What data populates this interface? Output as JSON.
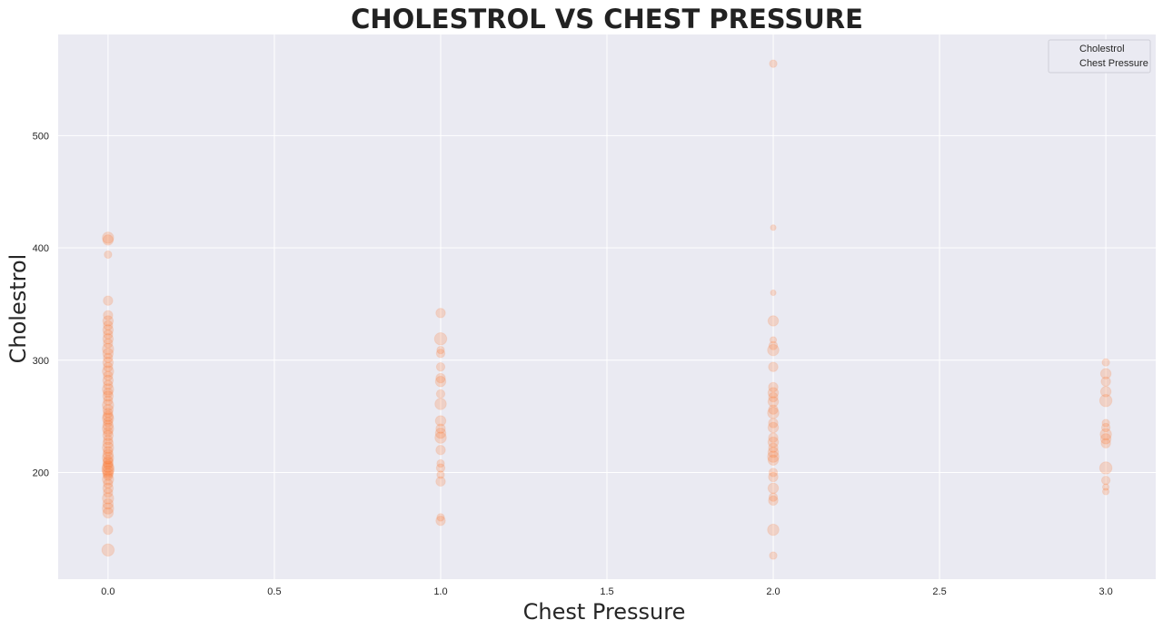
{
  "colors": {
    "background": "#eaeaf2",
    "grid": "#ffffff",
    "marker": "#ff6a1a"
  },
  "chart_data": {
    "type": "scatter",
    "title": "CHOLESTROL VS CHEST PRESSURE",
    "xlabel": "Chest Pressure",
    "ylabel": "Cholestrol",
    "xlim": [
      -0.15,
      3.15
    ],
    "ylim": [
      105,
      590
    ],
    "x_ticks": [
      "0.0",
      "0.5",
      "1.0",
      "1.5",
      "2.0",
      "2.5",
      "3.0"
    ],
    "y_ticks": [
      "200",
      "300",
      "400",
      "500"
    ],
    "grid": true,
    "legend": {
      "position": "top-right",
      "entries": [
        "Cholestrol",
        "Chest Pressure"
      ]
    },
    "marker_alpha": 0.2,
    "points": [
      {
        "x": 0,
        "y": 131,
        "s": 1.3
      },
      {
        "x": 0,
        "y": 149,
        "s": 1.0
      },
      {
        "x": 0,
        "y": 164,
        "s": 1.1
      },
      {
        "x": 0,
        "y": 168,
        "s": 1.2
      },
      {
        "x": 0,
        "y": 172,
        "s": 1.1
      },
      {
        "x": 0,
        "y": 177,
        "s": 1.2
      },
      {
        "x": 0,
        "y": 182,
        "s": 1.0
      },
      {
        "x": 0,
        "y": 186,
        "s": 1.1
      },
      {
        "x": 0,
        "y": 190,
        "s": 1.0
      },
      {
        "x": 0,
        "y": 194,
        "s": 1.2
      },
      {
        "x": 0,
        "y": 197,
        "s": 1.0
      },
      {
        "x": 0,
        "y": 199,
        "s": 1.1
      },
      {
        "x": 0,
        "y": 201,
        "s": 1.2
      },
      {
        "x": 0,
        "y": 203,
        "s": 1.3
      },
      {
        "x": 0,
        "y": 205,
        "s": 1.2
      },
      {
        "x": 0,
        "y": 207,
        "s": 1.0
      },
      {
        "x": 0,
        "y": 209,
        "s": 1.1
      },
      {
        "x": 0,
        "y": 211,
        "s": 1.0
      },
      {
        "x": 0,
        "y": 213,
        "s": 1.2
      },
      {
        "x": 0,
        "y": 216,
        "s": 1.1
      },
      {
        "x": 0,
        "y": 219,
        "s": 1.0
      },
      {
        "x": 0,
        "y": 222,
        "s": 1.2
      },
      {
        "x": 0,
        "y": 226,
        "s": 1.1
      },
      {
        "x": 0,
        "y": 229,
        "s": 1.0
      },
      {
        "x": 0,
        "y": 233,
        "s": 1.1
      },
      {
        "x": 0,
        "y": 236,
        "s": 1.0
      },
      {
        "x": 0,
        "y": 239,
        "s": 1.2
      },
      {
        "x": 0,
        "y": 242,
        "s": 1.1
      },
      {
        "x": 0,
        "y": 245,
        "s": 1.0
      },
      {
        "x": 0,
        "y": 248,
        "s": 1.2
      },
      {
        "x": 0,
        "y": 250,
        "s": 1.1
      },
      {
        "x": 0,
        "y": 253,
        "s": 1.0
      },
      {
        "x": 0,
        "y": 256,
        "s": 1.1
      },
      {
        "x": 0,
        "y": 260,
        "s": 1.2
      },
      {
        "x": 0,
        "y": 264,
        "s": 1.0
      },
      {
        "x": 0,
        "y": 268,
        "s": 1.1
      },
      {
        "x": 0,
        "y": 271,
        "s": 1.0
      },
      {
        "x": 0,
        "y": 274,
        "s": 1.2
      },
      {
        "x": 0,
        "y": 278,
        "s": 1.0
      },
      {
        "x": 0,
        "y": 282,
        "s": 1.1
      },
      {
        "x": 0,
        "y": 286,
        "s": 1.0
      },
      {
        "x": 0,
        "y": 290,
        "s": 1.2
      },
      {
        "x": 0,
        "y": 294,
        "s": 1.0
      },
      {
        "x": 0,
        "y": 298,
        "s": 1.1
      },
      {
        "x": 0,
        "y": 302,
        "s": 1.0
      },
      {
        "x": 0,
        "y": 306,
        "s": 1.1
      },
      {
        "x": 0,
        "y": 310,
        "s": 1.2
      },
      {
        "x": 0,
        "y": 315,
        "s": 1.0
      },
      {
        "x": 0,
        "y": 319,
        "s": 1.1
      },
      {
        "x": 0,
        "y": 323,
        "s": 1.0
      },
      {
        "x": 0,
        "y": 327,
        "s": 1.1
      },
      {
        "x": 0,
        "y": 331,
        "s": 1.0
      },
      {
        "x": 0,
        "y": 335,
        "s": 1.1
      },
      {
        "x": 0,
        "y": 340,
        "s": 1.0
      },
      {
        "x": 0,
        "y": 353,
        "s": 1.0
      },
      {
        "x": 0,
        "y": 394,
        "s": 0.8
      },
      {
        "x": 0,
        "y": 407,
        "s": 1.1
      },
      {
        "x": 0,
        "y": 409,
        "s": 1.2
      },
      {
        "x": 1,
        "y": 157,
        "s": 1.0
      },
      {
        "x": 1,
        "y": 160,
        "s": 0.8
      },
      {
        "x": 1,
        "y": 192,
        "s": 1.0
      },
      {
        "x": 1,
        "y": 198,
        "s": 0.8
      },
      {
        "x": 1,
        "y": 204,
        "s": 0.9
      },
      {
        "x": 1,
        "y": 208,
        "s": 0.8
      },
      {
        "x": 1,
        "y": 220,
        "s": 1.0
      },
      {
        "x": 1,
        "y": 231,
        "s": 1.2
      },
      {
        "x": 1,
        "y": 235,
        "s": 1.1
      },
      {
        "x": 1,
        "y": 239,
        "s": 1.0
      },
      {
        "x": 1,
        "y": 246,
        "s": 1.1
      },
      {
        "x": 1,
        "y": 261,
        "s": 1.2
      },
      {
        "x": 1,
        "y": 270,
        "s": 0.9
      },
      {
        "x": 1,
        "y": 281,
        "s": 1.1
      },
      {
        "x": 1,
        "y": 284,
        "s": 1.0
      },
      {
        "x": 1,
        "y": 294,
        "s": 0.9
      },
      {
        "x": 1,
        "y": 306,
        "s": 0.9
      },
      {
        "x": 1,
        "y": 309,
        "s": 0.8
      },
      {
        "x": 1,
        "y": 319,
        "s": 1.3
      },
      {
        "x": 1,
        "y": 342,
        "s": 1.0
      },
      {
        "x": 2,
        "y": 126,
        "s": 0.8
      },
      {
        "x": 2,
        "y": 149,
        "s": 1.2
      },
      {
        "x": 2,
        "y": 175,
        "s": 1.0
      },
      {
        "x": 2,
        "y": 178,
        "s": 0.9
      },
      {
        "x": 2,
        "y": 186,
        "s": 1.1
      },
      {
        "x": 2,
        "y": 196,
        "s": 1.0
      },
      {
        "x": 2,
        "y": 200,
        "s": 0.9
      },
      {
        "x": 2,
        "y": 211,
        "s": 1.1
      },
      {
        "x": 2,
        "y": 214,
        "s": 1.2
      },
      {
        "x": 2,
        "y": 218,
        "s": 1.1
      },
      {
        "x": 2,
        "y": 222,
        "s": 1.0
      },
      {
        "x": 2,
        "y": 227,
        "s": 1.1
      },
      {
        "x": 2,
        "y": 231,
        "s": 1.0
      },
      {
        "x": 2,
        "y": 240,
        "s": 1.1
      },
      {
        "x": 2,
        "y": 244,
        "s": 1.0
      },
      {
        "x": 2,
        "y": 253,
        "s": 1.2
      },
      {
        "x": 2,
        "y": 256,
        "s": 1.0
      },
      {
        "x": 2,
        "y": 263,
        "s": 1.1
      },
      {
        "x": 2,
        "y": 267,
        "s": 1.0
      },
      {
        "x": 2,
        "y": 271,
        "s": 1.1
      },
      {
        "x": 2,
        "y": 276,
        "s": 1.0
      },
      {
        "x": 2,
        "y": 294,
        "s": 1.0
      },
      {
        "x": 2,
        "y": 309,
        "s": 1.2
      },
      {
        "x": 2,
        "y": 313,
        "s": 0.9
      },
      {
        "x": 2,
        "y": 318,
        "s": 0.7
      },
      {
        "x": 2,
        "y": 335,
        "s": 1.1
      },
      {
        "x": 2,
        "y": 360,
        "s": 0.6
      },
      {
        "x": 2,
        "y": 418,
        "s": 0.6
      },
      {
        "x": 2,
        "y": 564,
        "s": 0.8
      },
      {
        "x": 3,
        "y": 183,
        "s": 0.7
      },
      {
        "x": 3,
        "y": 187,
        "s": 0.7
      },
      {
        "x": 3,
        "y": 193,
        "s": 0.9
      },
      {
        "x": 3,
        "y": 204,
        "s": 1.3
      },
      {
        "x": 3,
        "y": 226,
        "s": 1.0
      },
      {
        "x": 3,
        "y": 230,
        "s": 1.1
      },
      {
        "x": 3,
        "y": 234,
        "s": 1.2
      },
      {
        "x": 3,
        "y": 240,
        "s": 0.9
      },
      {
        "x": 3,
        "y": 244,
        "s": 0.8
      },
      {
        "x": 3,
        "y": 264,
        "s": 1.3
      },
      {
        "x": 3,
        "y": 272,
        "s": 1.1
      },
      {
        "x": 3,
        "y": 281,
        "s": 1.0
      },
      {
        "x": 3,
        "y": 288,
        "s": 1.1
      },
      {
        "x": 3,
        "y": 298,
        "s": 0.8
      }
    ]
  }
}
